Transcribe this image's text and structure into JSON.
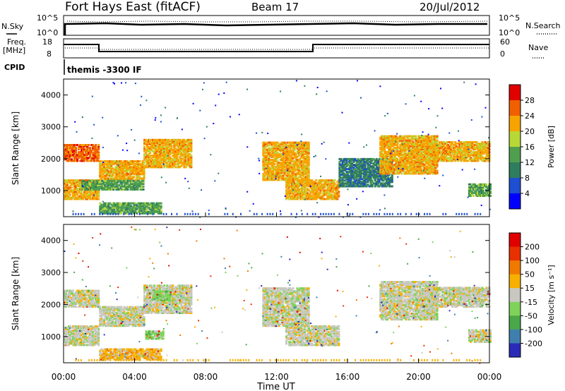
{
  "header": {
    "station": "Fort Hays East (fitACF)",
    "beam": "Beam 17",
    "date": "20/Jul/2012"
  },
  "summary": {
    "nsky_label": "N.Sky",
    "nsky_ticks": [
      "10^5",
      "10^0"
    ],
    "nsearch_label": "N.Search",
    "nsearch_ticks": [
      "10^5",
      "10^0"
    ],
    "freq_label_1": "Freq.",
    "freq_label_2": "[MHz]",
    "freq_ticks": [
      "18",
      "8"
    ],
    "nave_label": "Nave",
    "nave_ticks": [
      "60",
      "0"
    ],
    "cpid_label": "CPID",
    "cpid_value": "themis -3300 IF"
  },
  "chart_data": [
    {
      "type": "heatmap",
      "panel": "power",
      "ylabel": "Slant Range [km]",
      "colorbar_label": "Power [dB]",
      "colorbar_ticks": [
        "28",
        "24",
        "20",
        "16",
        "12",
        "8",
        "4"
      ],
      "colors": [
        "#0000ff",
        "#1e4fd0",
        "#2e7d5e",
        "#4f9f4f",
        "#b8d838",
        "#f7a400",
        "#f06000",
        "#e00000"
      ],
      "x_range_hours": [
        0,
        24
      ],
      "y_range_km": [
        180,
        4500
      ],
      "y_ticks": [
        "4000",
        "3000",
        "2000",
        "1000"
      ],
      "bands": [
        {
          "t0": 0.0,
          "t1": 2.0,
          "r0": 1900,
          "r1": 2400,
          "level": 6
        },
        {
          "t0": 0.0,
          "t1": 2.0,
          "r0": 700,
          "r1": 1300,
          "level": 5
        },
        {
          "t0": 2.0,
          "t1": 4.5,
          "r0": 1300,
          "r1": 1900,
          "level": 5
        },
        {
          "t0": 4.5,
          "t1": 7.2,
          "r0": 1700,
          "r1": 2600,
          "level": 5
        },
        {
          "t0": 1.0,
          "t1": 4.5,
          "r0": 1000,
          "r1": 1300,
          "level": 3
        },
        {
          "t0": 2.0,
          "t1": 5.5,
          "r0": 250,
          "r1": 600,
          "level": 3
        },
        {
          "t0": 11.2,
          "t1": 13.8,
          "r0": 1300,
          "r1": 2500,
          "level": 5
        },
        {
          "t0": 12.5,
          "t1": 15.5,
          "r0": 700,
          "r1": 1300,
          "level": 5
        },
        {
          "t0": 15.5,
          "t1": 18.5,
          "r0": 1100,
          "r1": 2000,
          "level": 2
        },
        {
          "t0": 17.8,
          "t1": 21.0,
          "r0": 1500,
          "r1": 2700,
          "level": 5
        },
        {
          "t0": 20.5,
          "t1": 24.0,
          "r0": 1900,
          "r1": 2500,
          "level": 5
        },
        {
          "t0": 22.8,
          "t1": 24.0,
          "r0": 800,
          "r1": 1200,
          "level": 3
        }
      ]
    },
    {
      "type": "heatmap",
      "panel": "velocity",
      "ylabel": "Slant Range [km]",
      "colorbar_label": "Velocity [m s⁻¹]",
      "colorbar_ticks": [
        "200",
        "100",
        "50",
        "15",
        "-15",
        "-50",
        "-100",
        "-200"
      ],
      "colors": [
        "#2b2bb8",
        "#3f7fae",
        "#4aa84a",
        "#7fd35a",
        "#c8c8c0",
        "#f7b000",
        "#f07a00",
        "#e83000",
        "#e00000"
      ],
      "x_range_hours": [
        0,
        24
      ],
      "y_range_km": [
        180,
        4500
      ],
      "y_ticks": [
        "4000",
        "3000",
        "2000",
        "1000"
      ],
      "x_ticks": [
        "00:00",
        "04:00",
        "08:00",
        "12:00",
        "16:00",
        "20:00",
        "00:00"
      ],
      "xlabel": "Time UT",
      "bands": [
        {
          "t0": 0.0,
          "t1": 2.0,
          "r0": 1900,
          "r1": 2400,
          "level": 4
        },
        {
          "t0": 0.0,
          "t1": 2.0,
          "r0": 700,
          "r1": 1300,
          "level": 4
        },
        {
          "t0": 2.0,
          "t1": 4.5,
          "r0": 1300,
          "r1": 1900,
          "level": 4
        },
        {
          "t0": 4.5,
          "t1": 7.2,
          "r0": 1700,
          "r1": 2600,
          "level": 4
        },
        {
          "t0": 5.0,
          "t1": 6.0,
          "r0": 2100,
          "r1": 2400,
          "level": 3
        },
        {
          "t0": 4.6,
          "t1": 5.6,
          "r0": 900,
          "r1": 1150,
          "level": 3
        },
        {
          "t0": 2.0,
          "t1": 5.5,
          "r0": 250,
          "r1": 600,
          "level": 5
        },
        {
          "t0": 11.2,
          "t1": 13.8,
          "r0": 1300,
          "r1": 2500,
          "level": 4
        },
        {
          "t0": 12.5,
          "t1": 15.5,
          "r0": 700,
          "r1": 1300,
          "level": 4
        },
        {
          "t0": 17.8,
          "t1": 21.0,
          "r0": 1500,
          "r1": 2700,
          "level": 4
        },
        {
          "t0": 20.5,
          "t1": 24.0,
          "r0": 1900,
          "r1": 2500,
          "level": 4
        },
        {
          "t0": 22.8,
          "t1": 24.0,
          "r0": 800,
          "r1": 1200,
          "level": 4
        }
      ]
    }
  ]
}
